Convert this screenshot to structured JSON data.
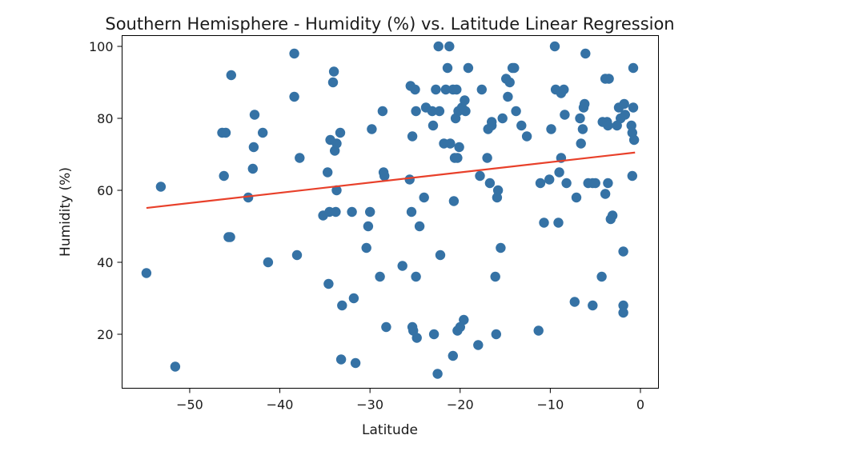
{
  "chart_data": {
    "type": "scatter",
    "title": "Southern Hemisphere - Humidity (%) vs. Latitude Linear Regression",
    "xlabel": "Latitude",
    "ylabel": "Humidity (%)",
    "xlim": [
      -57.5,
      2.0
    ],
    "ylim": [
      5,
      103
    ],
    "xticks": [
      -50,
      -40,
      -30,
      -20,
      -10,
      0
    ],
    "yticks": [
      20,
      40,
      60,
      80,
      100
    ],
    "grid": false,
    "colors": {
      "points": "#3572a5",
      "regression": "#e8402a",
      "axis": "#000000"
    },
    "regression": {
      "x": [
        -54.8,
        -0.6
      ],
      "y": [
        55.1,
        70.5
      ]
    },
    "points": [
      [
        -54.8,
        37
      ],
      [
        -53.2,
        61
      ],
      [
        -51.6,
        11
      ],
      [
        -46.4,
        76
      ],
      [
        -46.2,
        64
      ],
      [
        -46.0,
        76
      ],
      [
        -45.7,
        47
      ],
      [
        -45.5,
        47
      ],
      [
        -45.4,
        92
      ],
      [
        -43.5,
        58
      ],
      [
        -43.0,
        66
      ],
      [
        -42.9,
        72
      ],
      [
        -42.8,
        81
      ],
      [
        -41.9,
        76
      ],
      [
        -41.3,
        40
      ],
      [
        -38.4,
        98
      ],
      [
        -38.4,
        86
      ],
      [
        -38.1,
        42
      ],
      [
        -37.8,
        69
      ],
      [
        -35.2,
        53
      ],
      [
        -34.7,
        65
      ],
      [
        -34.6,
        34
      ],
      [
        -34.5,
        54
      ],
      [
        -34.4,
        74
      ],
      [
        -34.1,
        90
      ],
      [
        -34.0,
        93
      ],
      [
        -33.9,
        71
      ],
      [
        -33.8,
        54
      ],
      [
        -33.7,
        73
      ],
      [
        -33.7,
        60
      ],
      [
        -33.3,
        76
      ],
      [
        -33.2,
        13
      ],
      [
        -33.1,
        28
      ],
      [
        -32.0,
        54
      ],
      [
        -31.8,
        30
      ],
      [
        -31.6,
        12
      ],
      [
        -30.4,
        44
      ],
      [
        -30.2,
        50
      ],
      [
        -30.0,
        54
      ],
      [
        -29.8,
        77
      ],
      [
        -28.9,
        36
      ],
      [
        -28.6,
        82
      ],
      [
        -28.5,
        65
      ],
      [
        -28.4,
        64
      ],
      [
        -28.2,
        22
      ],
      [
        -26.4,
        39
      ],
      [
        -25.6,
        63
      ],
      [
        -25.5,
        89
      ],
      [
        -25.4,
        54
      ],
      [
        -25.3,
        75
      ],
      [
        -25.3,
        22
      ],
      [
        -25.2,
        21
      ],
      [
        -25.0,
        88
      ],
      [
        -24.9,
        82
      ],
      [
        -24.9,
        36
      ],
      [
        -24.8,
        19
      ],
      [
        -24.5,
        50
      ],
      [
        -24.0,
        58
      ],
      [
        -23.8,
        83
      ],
      [
        -23.1,
        82
      ],
      [
        -23.0,
        78
      ],
      [
        -22.9,
        20
      ],
      [
        -22.7,
        88
      ],
      [
        -22.5,
        9
      ],
      [
        -22.4,
        100
      ],
      [
        -22.3,
        82
      ],
      [
        -22.2,
        42
      ],
      [
        -21.8,
        73
      ],
      [
        -21.6,
        88
      ],
      [
        -21.4,
        94
      ],
      [
        -21.2,
        100
      ],
      [
        -21.1,
        73
      ],
      [
        -20.8,
        88
      ],
      [
        -20.8,
        14
      ],
      [
        -20.7,
        57
      ],
      [
        -20.6,
        69
      ],
      [
        -20.5,
        80
      ],
      [
        -20.4,
        88
      ],
      [
        -20.3,
        69
      ],
      [
        -20.3,
        21
      ],
      [
        -20.2,
        82
      ],
      [
        -20.1,
        72
      ],
      [
        -20.0,
        22
      ],
      [
        -19.8,
        83
      ],
      [
        -19.6,
        24
      ],
      [
        -19.5,
        85
      ],
      [
        -19.4,
        82
      ],
      [
        -19.1,
        94
      ],
      [
        -18.0,
        17
      ],
      [
        -17.8,
        64
      ],
      [
        -17.6,
        88
      ],
      [
        -17.0,
        69
      ],
      [
        -16.9,
        77
      ],
      [
        -16.7,
        62
      ],
      [
        -16.5,
        78
      ],
      [
        -16.5,
        79
      ],
      [
        -16.1,
        36
      ],
      [
        -16.0,
        20
      ],
      [
        -15.9,
        58
      ],
      [
        -15.8,
        60
      ],
      [
        -15.5,
        44
      ],
      [
        -15.3,
        80
      ],
      [
        -14.9,
        91
      ],
      [
        -14.7,
        86
      ],
      [
        -14.5,
        90
      ],
      [
        -14.2,
        94
      ],
      [
        -14.0,
        94
      ],
      [
        -13.8,
        82
      ],
      [
        -13.2,
        78
      ],
      [
        -12.6,
        75
      ],
      [
        -11.3,
        21
      ],
      [
        -11.1,
        62
      ],
      [
        -10.7,
        51
      ],
      [
        -10.1,
        63
      ],
      [
        -9.9,
        77
      ],
      [
        -9.5,
        100
      ],
      [
        -9.4,
        88
      ],
      [
        -9.1,
        51
      ],
      [
        -9.0,
        65
      ],
      [
        -8.8,
        69
      ],
      [
        -8.8,
        87
      ],
      [
        -8.5,
        88
      ],
      [
        -8.4,
        81
      ],
      [
        -8.2,
        62
      ],
      [
        -7.3,
        29
      ],
      [
        -7.1,
        58
      ],
      [
        -6.7,
        80
      ],
      [
        -6.6,
        73
      ],
      [
        -6.4,
        77
      ],
      [
        -6.3,
        83
      ],
      [
        -6.2,
        84
      ],
      [
        -6.1,
        98
      ],
      [
        -5.8,
        62
      ],
      [
        -5.3,
        62
      ],
      [
        -5.3,
        28
      ],
      [
        -5.0,
        62
      ],
      [
        -4.3,
        36
      ],
      [
        -4.2,
        79
      ],
      [
        -3.9,
        91
      ],
      [
        -3.9,
        59
      ],
      [
        -3.7,
        79
      ],
      [
        -3.6,
        78
      ],
      [
        -3.6,
        62
      ],
      [
        -3.5,
        91
      ],
      [
        -3.3,
        52
      ],
      [
        -3.1,
        53
      ],
      [
        -2.6,
        78
      ],
      [
        -2.4,
        83
      ],
      [
        -2.2,
        80
      ],
      [
        -1.9,
        43
      ],
      [
        -1.9,
        28
      ],
      [
        -1.9,
        26
      ],
      [
        -1.8,
        84
      ],
      [
        -1.7,
        81
      ],
      [
        -1.0,
        78
      ],
      [
        -0.9,
        76
      ],
      [
        -0.9,
        64
      ],
      [
        -0.8,
        94
      ],
      [
        -0.8,
        83
      ],
      [
        -0.7,
        74
      ]
    ]
  }
}
